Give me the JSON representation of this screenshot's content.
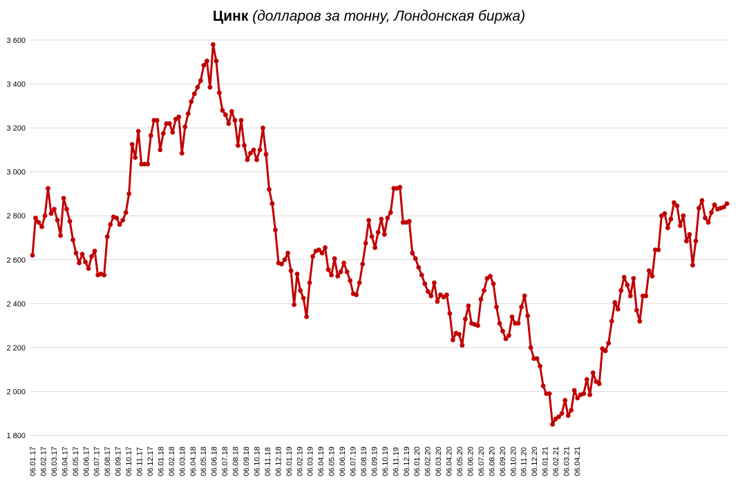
{
  "title_bold": "Цинк",
  "title_rest": " (долларов за тонну, Лондонская биржа)",
  "colors": {
    "series": "#c00000",
    "grid": "#d9d9d9"
  },
  "chart_data": {
    "type": "line",
    "title": "Цинк (долларов за тонну, Лондонская биржа)",
    "ylim": [
      1800,
      3600
    ],
    "yticks": [
      1800,
      2000,
      2200,
      2400,
      2600,
      2800,
      3000,
      3200,
      3400,
      3600
    ],
    "ytick_labels": [
      "1 800",
      "2 000",
      "2 200",
      "2 400",
      "2 600",
      "2 800",
      "3 000",
      "3 200",
      "3 400",
      "3 600"
    ],
    "xtick_labels": [
      "06.01.17",
      "06.02.17",
      "06.03.17",
      "06.04.17",
      "06.05.17",
      "06.06.17",
      "06.07.17",
      "06.08.17",
      "06.09.17",
      "06.10.17",
      "06.11.17",
      "06.12.17",
      "06.01.18",
      "06.02.18",
      "06.03.18",
      "06.04.18",
      "06.05.18",
      "06.06.18",
      "06.07.18",
      "06.08.18",
      "06.09.18",
      "06.10.18",
      "06.11.18",
      "06.12.18",
      "06.01.19",
      "06.02.19",
      "06.03.19",
      "06.04.19",
      "06.05.19",
      "06.06.19",
      "06.07.19",
      "06.08.19",
      "06.09.19",
      "06.10.19",
      "06.11.19",
      "06.12.19",
      "06.01.20",
      "06.02.20",
      "06.03.20",
      "06.04.20",
      "06.05.20",
      "06.06.20",
      "06.07.20",
      "06.08.20",
      "06.09.20",
      "06.10.20",
      "06.11.20",
      "06.12.20",
      "06.01.21",
      "06.02.21",
      "06.03.21",
      "06.04.21"
    ],
    "grid": true,
    "legend": "none",
    "marker": "circle",
    "series": [
      {
        "values": [
          2620,
          2790,
          2770,
          2750,
          2800,
          2925,
          2810,
          2830,
          2780,
          2710,
          2880,
          2830,
          2775,
          2690,
          2630,
          2585,
          2625,
          2590,
          2560,
          2615,
          2640,
          2530,
          2535,
          2530,
          2705,
          2760,
          2795,
          2790,
          2760,
          2780,
          2815,
          2900,
          3125,
          3065,
          3185,
          3035,
          3035,
          3035,
          3165,
          3235,
          3235,
          3100,
          3175,
          3220,
          3220,
          3180,
          3240,
          3250,
          3085,
          3205,
          3265,
          3320,
          3355,
          3385,
          3415,
          3485,
          3505,
          3385,
          3580,
          3505,
          3360,
          3280,
          3260,
          3220,
          3275,
          3235,
          3120,
          3235,
          3120,
          3055,
          3085,
          3100,
          3055,
          3100,
          3200,
          3080,
          2920,
          2855,
          2735,
          2585,
          2580,
          2600,
          2630,
          2550,
          2395,
          2535,
          2460,
          2425,
          2340,
          2495,
          2615,
          2640,
          2645,
          2630,
          2655,
          2555,
          2530,
          2605,
          2525,
          2545,
          2585,
          2545,
          2505,
          2445,
          2440,
          2495,
          2580,
          2675,
          2780,
          2705,
          2655,
          2725,
          2785,
          2715,
          2790,
          2815,
          2925,
          2925,
          2930,
          2770,
          2770,
          2775,
          2630,
          2605,
          2565,
          2530,
          2490,
          2455,
          2435,
          2495,
          2410,
          2440,
          2430,
          2440,
          2355,
          2235,
          2265,
          2260,
          2210,
          2330,
          2390,
          2310,
          2305,
          2300,
          2420,
          2460,
          2515,
          2525,
          2490,
          2385,
          2310,
          2275,
          2240,
          2255,
          2340,
          2310,
          2310,
          2385,
          2435,
          2345,
          2200,
          2150,
          2150,
          2115,
          2025,
          1990,
          1990,
          1850,
          1875,
          1885,
          1900,
          1960,
          1890,
          1915,
          2005,
          1970,
          1985,
          1990,
          2055,
          1985,
          2085,
          2045,
          2035,
          2195,
          2185,
          2220,
          2320,
          2405,
          2375,
          2460,
          2520,
          2485,
          2435,
          2515,
          2370,
          2320,
          2435,
          2435,
          2550,
          2525,
          2645,
          2645,
          2800,
          2810,
          2745,
          2785,
          2860,
          2845,
          2755,
          2800,
          2685,
          2715,
          2575,
          2685,
          2835,
          2870,
          2790,
          2770,
          2815,
          2850,
          2830,
          2835,
          2840,
          2855
        ]
      }
    ]
  }
}
